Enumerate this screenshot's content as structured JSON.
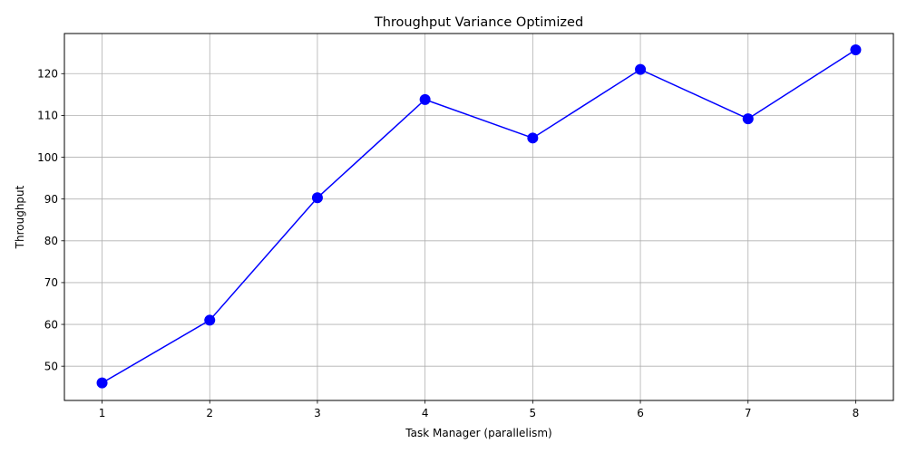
{
  "chart_data": {
    "type": "line",
    "title": "Throughput Variance Optimized",
    "xlabel": "Task Manager (parallelism)",
    "ylabel": "Throughput",
    "x": [
      1,
      2,
      3,
      4,
      5,
      6,
      7,
      8
    ],
    "xticks": [
      1,
      2,
      3,
      4,
      5,
      6,
      7,
      8
    ],
    "yticks": [
      50,
      60,
      70,
      80,
      90,
      100,
      110,
      120
    ],
    "xlim": [
      0.65,
      8.35
    ],
    "ylim": [
      41.8,
      129.6
    ],
    "grid": true,
    "series": [
      {
        "values": [
          46.0,
          61.0,
          90.3,
          113.8,
          104.6,
          121.0,
          109.2,
          125.7
        ],
        "color": "#0000ff",
        "marker": "circle"
      }
    ]
  }
}
